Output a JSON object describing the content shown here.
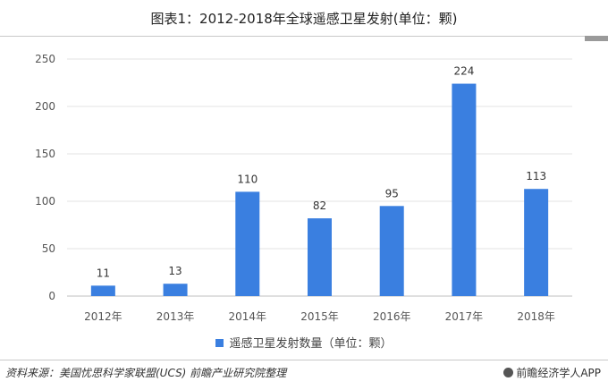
{
  "chart_data": {
    "type": "bar",
    "title": "图表1：2012-2018年全球遥感卫星发射(单位：颗)",
    "categories": [
      "2012年",
      "2013年",
      "2014年",
      "2015年",
      "2016年",
      "2017年",
      "2018年"
    ],
    "series": [
      {
        "name": "遥感卫星发射数量（单位：颗）",
        "values": [
          11,
          13,
          110,
          82,
          95,
          224,
          113
        ]
      }
    ],
    "ylim": [
      0,
      250
    ],
    "yticks": [
      0,
      50,
      100,
      150,
      200,
      250
    ],
    "grid": true,
    "legend_position": "bottom",
    "bar_color": "#3a7fe0"
  },
  "footer": {
    "source": "资料来源：美国忧思科学家联盟(UCS) 前瞻产业研究院整理",
    "brand": "前瞻经济学人APP"
  }
}
